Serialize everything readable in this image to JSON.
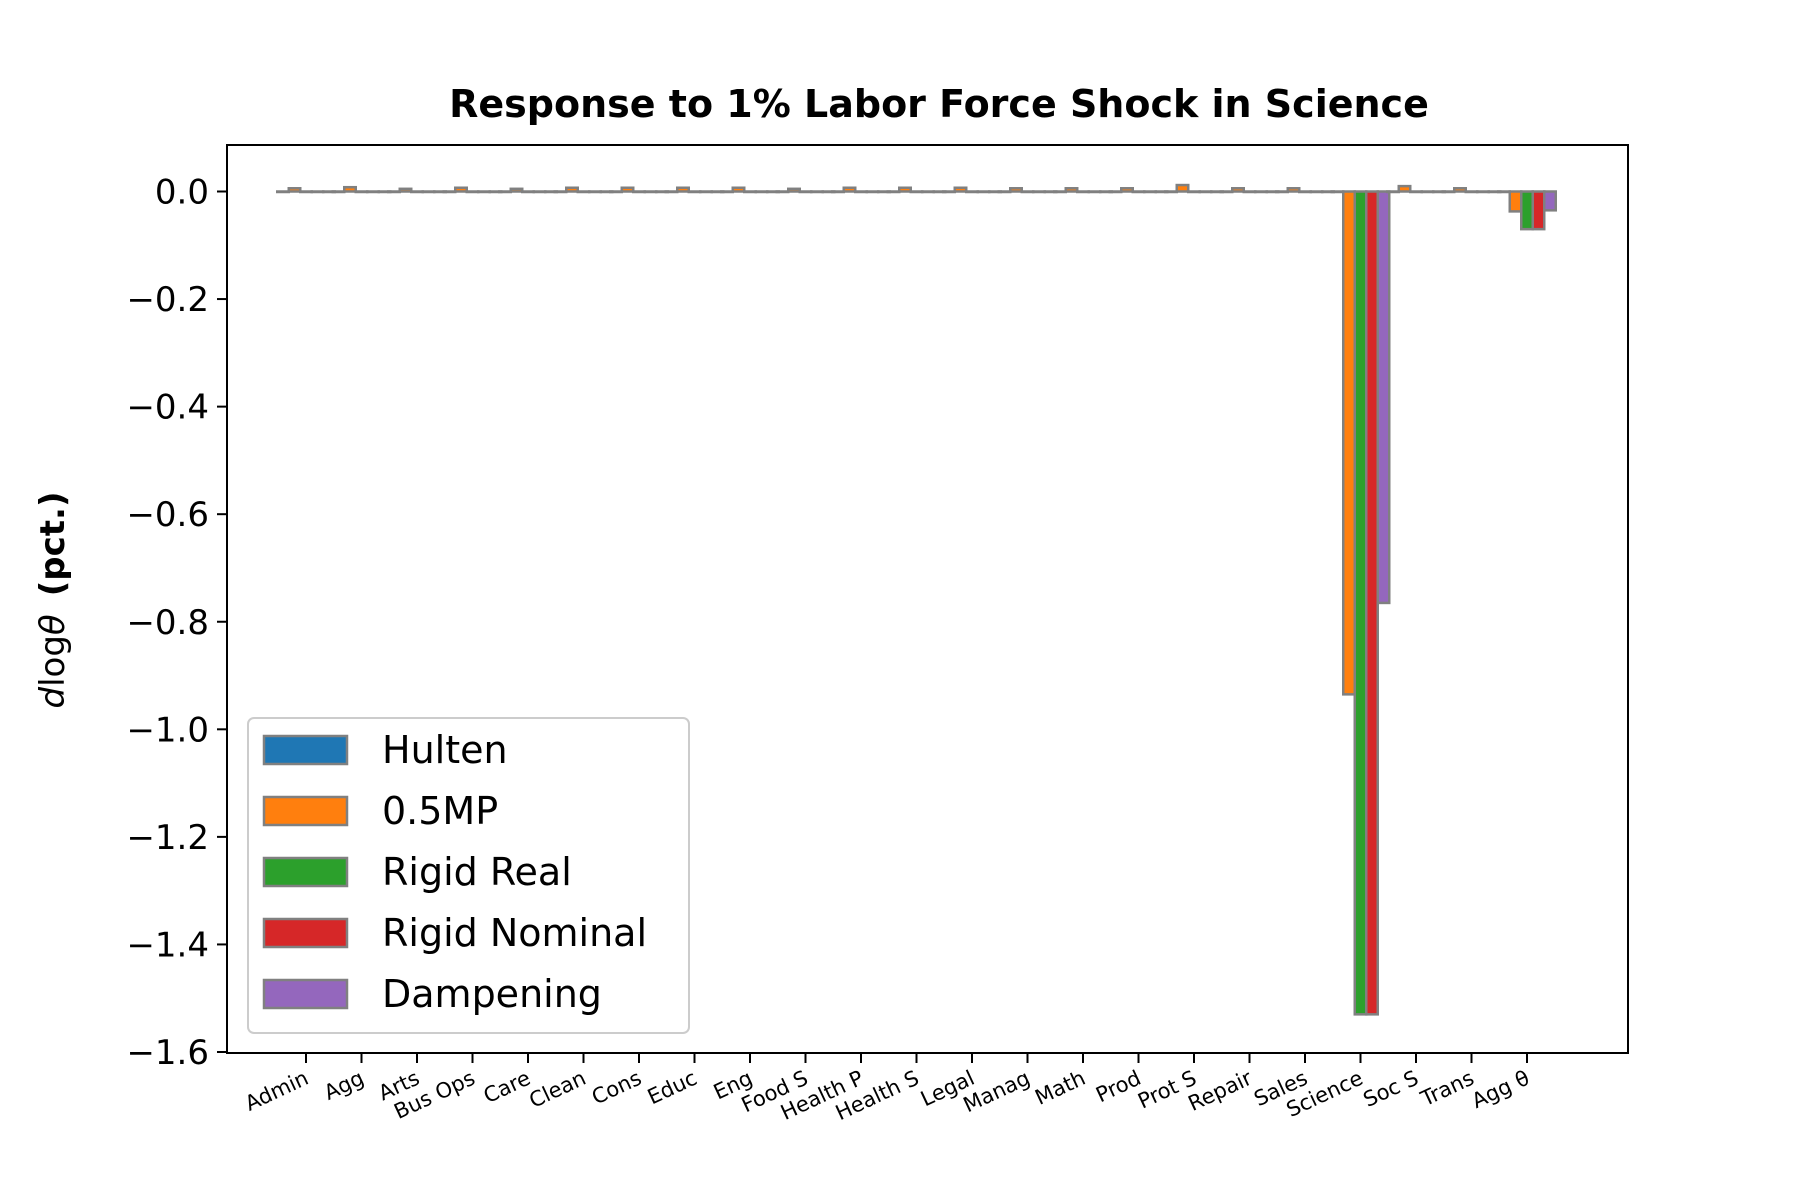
{
  "chart_data": {
    "type": "bar",
    "title": "Response to 1% Labor Force Shock in Science",
    "ylabel": "d log θ  (pct.)",
    "xlabel": "",
    "ylim": [
      -1.6,
      0.08
    ],
    "yticks": [
      "0.0",
      "−0.2",
      "−0.4",
      "−0.6",
      "−0.8",
      "−1.0",
      "−1.2",
      "−1.4",
      "−1.6"
    ],
    "ytick_values": [
      0.0,
      -0.2,
      -0.4,
      -0.6,
      -0.8,
      -1.0,
      -1.2,
      -1.4,
      -1.6
    ],
    "grid": false,
    "legend_position": "lower-left",
    "bar_edge_color": "#808080",
    "categories": [
      "Admin",
      "Agg",
      "Arts",
      "Bus Ops",
      "Care",
      "Clean",
      "Cons",
      "Educ",
      "Eng",
      "Food S",
      "Health P",
      "Health S",
      "Legal",
      "Manag",
      "Math",
      "Prod",
      "Prot S",
      "Repair",
      "Sales",
      "Science",
      "Soc S",
      "Trans",
      "Agg θ"
    ],
    "series": [
      {
        "name": "Hulten",
        "color": "#1f77b4",
        "values": [
          0,
          0,
          0,
          0,
          0,
          0,
          0,
          0,
          0,
          0,
          0,
          0,
          0,
          0,
          0,
          0,
          0,
          0,
          0,
          0,
          0,
          0,
          0
        ]
      },
      {
        "name": "0.5MP",
        "color": "#ff7f0e",
        "values": [
          0.006,
          0.008,
          0.005,
          0.007,
          0.005,
          0.007,
          0.007,
          0.007,
          0.007,
          0.005,
          0.007,
          0.007,
          0.007,
          0.006,
          0.006,
          0.006,
          0.012,
          0.006,
          0.006,
          -0.935,
          0.01,
          0.006,
          -0.037
        ]
      },
      {
        "name": "Rigid Real",
        "color": "#2ca02c",
        "values": [
          0,
          0,
          0,
          0,
          0,
          0,
          0,
          0,
          0,
          0,
          0,
          0,
          0,
          0,
          0,
          0,
          0,
          0,
          0,
          -1.53,
          0,
          0,
          -0.07
        ]
      },
      {
        "name": "Rigid Nominal",
        "color": "#d62728",
        "values": [
          0,
          0,
          0,
          0,
          0,
          0,
          0,
          0,
          0,
          0,
          0,
          0,
          0,
          0,
          0,
          0,
          0,
          0,
          0,
          -1.53,
          0,
          0,
          -0.07
        ]
      },
      {
        "name": "Dampening",
        "color": "#9467bd",
        "values": [
          0,
          0,
          0,
          0,
          0,
          0,
          0,
          0,
          0,
          0,
          0,
          0,
          0,
          0,
          0,
          0,
          0,
          0,
          0,
          -0.765,
          0,
          0,
          -0.035
        ]
      }
    ]
  }
}
